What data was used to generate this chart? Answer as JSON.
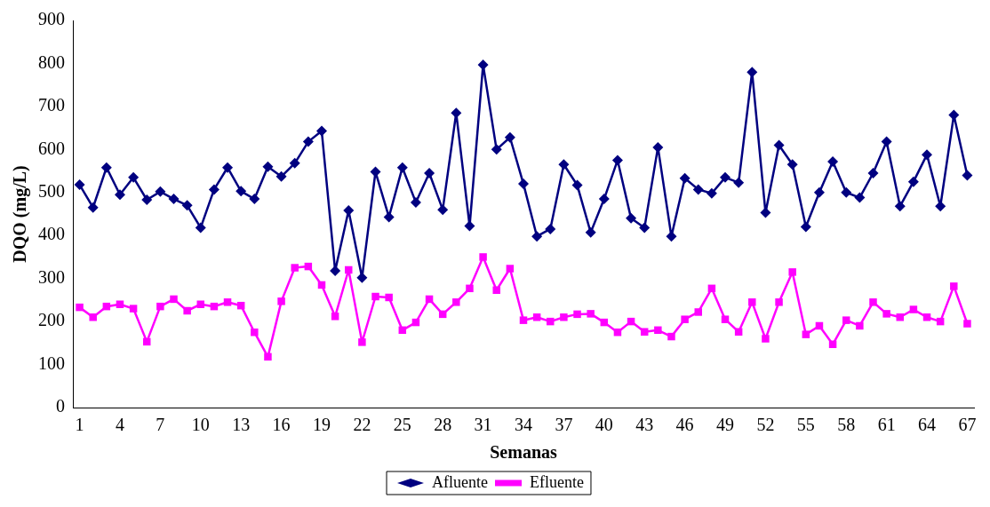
{
  "chart_data": {
    "type": "line",
    "xlabel": "Semanas",
    "ylabel": "DQO (mg/L)",
    "categories": [
      "1",
      null,
      null,
      "4",
      null,
      null,
      "7",
      null,
      null,
      "10",
      null,
      null,
      "13",
      null,
      null,
      "16",
      null,
      null,
      "19",
      null,
      null,
      "22",
      null,
      null,
      "25",
      null,
      null,
      "28",
      null,
      null,
      "31",
      null,
      null,
      "34",
      null,
      null,
      "37",
      null,
      null,
      "40",
      null,
      null,
      "43",
      null,
      null,
      "46",
      null,
      null,
      "49",
      null,
      null,
      "52",
      null,
      null,
      "55",
      null,
      null,
      "58",
      null,
      null,
      "61",
      null,
      null,
      "64",
      null,
      null,
      "67"
    ],
    "series": [
      {
        "name": "Afluente",
        "color": "#000080",
        "marker": "diamond",
        "values": [
          518,
          465,
          558,
          495,
          535,
          483,
          502,
          485,
          470,
          418,
          507,
          558,
          503,
          485,
          560,
          537,
          568,
          618,
          643,
          318,
          458,
          302,
          548,
          443,
          558,
          477,
          545,
          460,
          685,
          422,
          797,
          600,
          628,
          520,
          398,
          415,
          565,
          517,
          407,
          485,
          575,
          440,
          418,
          605,
          398,
          533,
          507,
          498,
          535,
          523,
          780,
          453,
          610,
          565,
          420,
          500,
          572,
          500,
          488,
          545,
          618,
          468,
          525,
          588,
          468,
          680,
          540
        ]
      },
      {
        "name": "Efluente",
        "color": "#ff00ff",
        "marker": "square",
        "values": [
          233,
          210,
          235,
          240,
          230,
          153,
          235,
          252,
          225,
          240,
          235,
          245,
          237,
          175,
          118,
          247,
          325,
          328,
          285,
          212,
          320,
          152,
          258,
          256,
          180,
          198,
          252,
          217,
          245,
          277,
          350,
          273,
          323,
          203,
          210,
          200,
          210,
          217,
          218,
          198,
          175,
          200,
          176,
          180,
          165,
          205,
          222,
          277,
          205,
          176,
          245,
          160,
          245,
          315,
          170,
          190,
          147,
          203,
          190,
          245,
          218,
          210,
          228,
          210,
          200,
          282,
          195
        ]
      }
    ],
    "ylim": [
      0,
      900
    ],
    "yticks": [
      0,
      100,
      200,
      300,
      400,
      500,
      600,
      700,
      800,
      900
    ],
    "grid": false,
    "legend": "bottom",
    "line_style": "solid"
  }
}
